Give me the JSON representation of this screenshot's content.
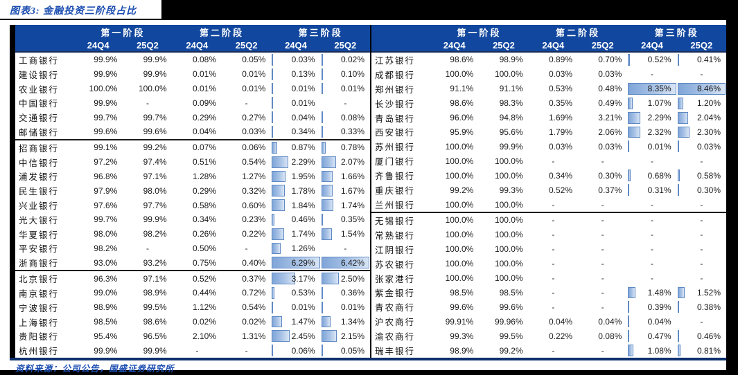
{
  "colors": {
    "header_bg": "#11479E",
    "title_text": "#1B4DB0",
    "bar_fill": "#7FA5D8",
    "bar_border": "#5F89C4",
    "table_bottom_border": "#0D306F",
    "frame": "#000000"
  },
  "chart_data": {
    "type": "table",
    "title": "图表3: 金融投资三阶段占比",
    "source": "资料来源：公司公告，国盛证券研究所",
    "column_groups": [
      "第一阶段",
      "第二阶段",
      "第三阶段"
    ],
    "sub_columns": [
      "24Q4",
      "25Q2"
    ],
    "databar_columns": "第三阶段",
    "tables": [
      {
        "side": "left",
        "bar_max_24q4": 6.29,
        "bar_max_25q2": 6.42,
        "group_breaks_after": [
          "邮储银行",
          "浙商银行"
        ],
        "rows": [
          {
            "bank": "工商银行",
            "values": [
              "99.9%",
              "99.9%",
              "0.08%",
              "0.05%",
              "0.03%",
              "0.02%"
            ]
          },
          {
            "bank": "建设银行",
            "values": [
              "99.9%",
              "99.9%",
              "0.01%",
              "0.01%",
              "0.13%",
              "0.10%"
            ]
          },
          {
            "bank": "农业银行",
            "values": [
              "100.0%",
              "100.0%",
              "0.01%",
              "0.01%",
              "0.01%",
              "0.01%"
            ]
          },
          {
            "bank": "中国银行",
            "values": [
              "99.9%",
              "-",
              "0.09%",
              "-",
              "0.01%",
              "-"
            ]
          },
          {
            "bank": "交通银行",
            "values": [
              "99.7%",
              "99.7%",
              "0.29%",
              "0.27%",
              "0.04%",
              "0.08%"
            ]
          },
          {
            "bank": "邮储银行",
            "values": [
              "99.6%",
              "99.6%",
              "0.04%",
              "0.03%",
              "0.34%",
              "0.33%"
            ]
          },
          {
            "bank": "招商银行",
            "values": [
              "99.1%",
              "99.2%",
              "0.07%",
              "0.06%",
              "0.87%",
              "0.78%"
            ]
          },
          {
            "bank": "中信银行",
            "values": [
              "97.2%",
              "97.4%",
              "0.51%",
              "0.54%",
              "2.29%",
              "2.07%"
            ]
          },
          {
            "bank": "浦发银行",
            "values": [
              "96.8%",
              "97.1%",
              "1.28%",
              "1.27%",
              "1.95%",
              "1.66%"
            ]
          },
          {
            "bank": "民生银行",
            "values": [
              "97.9%",
              "98.0%",
              "0.29%",
              "0.32%",
              "1.78%",
              "1.67%"
            ]
          },
          {
            "bank": "兴业银行",
            "values": [
              "97.6%",
              "97.7%",
              "0.58%",
              "0.60%",
              "1.84%",
              "1.74%"
            ]
          },
          {
            "bank": "光大银行",
            "values": [
              "99.7%",
              "99.9%",
              "0.34%",
              "0.23%",
              "0.46%",
              "0.35%"
            ]
          },
          {
            "bank": "华夏银行",
            "values": [
              "98.0%",
              "98.2%",
              "0.26%",
              "0.22%",
              "1.74%",
              "1.54%"
            ]
          },
          {
            "bank": "平安银行",
            "values": [
              "98.2%",
              "-",
              "0.50%",
              "-",
              "1.26%",
              "-"
            ]
          },
          {
            "bank": "浙商银行",
            "values": [
              "93.0%",
              "93.2%",
              "0.75%",
              "0.40%",
              "6.29%",
              "6.42%"
            ]
          },
          {
            "bank": "北京银行",
            "values": [
              "96.3%",
              "97.1%",
              "0.52%",
              "0.37%",
              "3.17%",
              "2.50%"
            ]
          },
          {
            "bank": "南京银行",
            "values": [
              "99.0%",
              "98.9%",
              "0.44%",
              "0.72%",
              "0.53%",
              "0.36%"
            ]
          },
          {
            "bank": "宁波银行",
            "values": [
              "98.9%",
              "99.5%",
              "1.12%",
              "0.54%",
              "0.01%",
              "0.01%"
            ]
          },
          {
            "bank": "上海银行",
            "values": [
              "98.5%",
              "98.6%",
              "0.02%",
              "0.02%",
              "1.47%",
              "1.34%"
            ]
          },
          {
            "bank": "贵阳银行",
            "values": [
              "95.4%",
              "96.5%",
              "2.10%",
              "1.31%",
              "2.45%",
              "2.15%"
            ]
          },
          {
            "bank": "杭州银行",
            "values": [
              "99.9%",
              "99.9%",
              "-",
              "-",
              "0.06%",
              "0.05%"
            ]
          }
        ]
      },
      {
        "side": "right",
        "bar_max_24q4": 8.35,
        "bar_max_25q2": 8.46,
        "group_breaks_after": [
          "兰州银行"
        ],
        "rows": [
          {
            "bank": "江苏银行",
            "values": [
              "98.6%",
              "98.9%",
              "0.89%",
              "0.70%",
              "0.52%",
              "0.41%"
            ]
          },
          {
            "bank": "成都银行",
            "values": [
              "100.0%",
              "100.0%",
              "0.03%",
              "0.03%",
              "-",
              "-"
            ]
          },
          {
            "bank": "郑州银行",
            "values": [
              "91.1%",
              "91.1%",
              "0.53%",
              "0.48%",
              "8.35%",
              "8.46%"
            ]
          },
          {
            "bank": "长沙银行",
            "values": [
              "98.6%",
              "98.3%",
              "0.35%",
              "0.49%",
              "1.07%",
              "1.20%"
            ]
          },
          {
            "bank": "青岛银行",
            "values": [
              "96.0%",
              "94.8%",
              "1.69%",
              "3.21%",
              "2.29%",
              "2.04%"
            ]
          },
          {
            "bank": "西安银行",
            "values": [
              "95.9%",
              "95.6%",
              "1.79%",
              "2.06%",
              "2.32%",
              "2.30%"
            ]
          },
          {
            "bank": "苏州银行",
            "values": [
              "100.0%",
              "99.9%",
              "0.03%",
              "0.03%",
              "0.01%",
              "0.03%"
            ]
          },
          {
            "bank": "厦门银行",
            "values": [
              "100.0%",
              "100.0%",
              "-",
              "-",
              "-",
              "-"
            ]
          },
          {
            "bank": "齐鲁银行",
            "values": [
              "100.0%",
              "100.0%",
              "0.34%",
              "0.30%",
              "0.68%",
              "0.58%"
            ]
          },
          {
            "bank": "重庆银行",
            "values": [
              "99.2%",
              "99.3%",
              "0.52%",
              "0.37%",
              "0.31%",
              "0.30%"
            ]
          },
          {
            "bank": "兰州银行",
            "values": [
              "100.0%",
              "100.0%",
              "-",
              "-",
              "-",
              "-"
            ]
          },
          {
            "bank": "无锡银行",
            "values": [
              "100.0%",
              "100.0%",
              "-",
              "-",
              "-",
              "-"
            ]
          },
          {
            "bank": "常熟银行",
            "values": [
              "100.0%",
              "100.0%",
              "-",
              "-",
              "-",
              "-"
            ]
          },
          {
            "bank": "江阴银行",
            "values": [
              "100.0%",
              "100.0%",
              "-",
              "-",
              "-",
              "-"
            ]
          },
          {
            "bank": "苏农银行",
            "values": [
              "100.0%",
              "100.0%",
              "-",
              "-",
              "-",
              "-"
            ]
          },
          {
            "bank": "张家港行",
            "values": [
              "100.0%",
              "100.0%",
              "-",
              "-",
              "-",
              "-"
            ]
          },
          {
            "bank": "紫金银行",
            "values": [
              "98.5%",
              "98.5%",
              "-",
              "-",
              "1.48%",
              "1.52%"
            ]
          },
          {
            "bank": "青农商行",
            "values": [
              "99.6%",
              "99.6%",
              "-",
              "-",
              "0.39%",
              "0.38%"
            ]
          },
          {
            "bank": "沪农商行",
            "values": [
              "99.91%",
              "99.96%",
              "0.04%",
              "0.04%",
              "0.04%",
              "-"
            ]
          },
          {
            "bank": "渝农商行",
            "values": [
              "99.3%",
              "99.5%",
              "0.22%",
              "0.08%",
              "0.47%",
              "0.46%"
            ]
          },
          {
            "bank": "瑞丰银行",
            "values": [
              "98.9%",
              "99.2%",
              "-",
              "-",
              "1.08%",
              "0.81%"
            ]
          }
        ]
      }
    ]
  }
}
